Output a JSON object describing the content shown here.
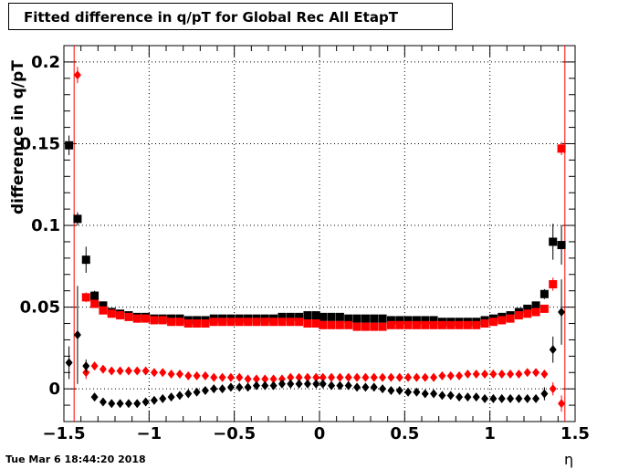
{
  "title": "Fitted difference in q/pT for Global Rec All EtapT",
  "timestamp": "Tue Mar  6 18:44:20 2018",
  "chart_data": {
    "type": "scatter",
    "title": "Fitted difference in q/pT for Global Rec All EtapT",
    "xlabel": "η",
    "ylabel": "difference in q/pT",
    "xlim": [
      -1.5,
      1.5
    ],
    "ylim": [
      -0.02,
      0.21
    ],
    "grid": true,
    "x_ticks": [
      "-1.5",
      "-1",
      "-0.5",
      "0",
      "0.5",
      "1",
      "1.5"
    ],
    "y_ticks": [
      "0",
      "0.05",
      "0.1",
      "0.15",
      "0.2"
    ],
    "vertical_lines": [
      -1.44,
      1.44
    ],
    "x": [
      -1.47,
      -1.42,
      -1.37,
      -1.32,
      -1.27,
      -1.22,
      -1.17,
      -1.12,
      -1.07,
      -1.02,
      -0.97,
      -0.92,
      -0.87,
      -0.82,
      -0.77,
      -0.72,
      -0.67,
      -0.62,
      -0.57,
      -0.52,
      -0.47,
      -0.42,
      -0.37,
      -0.32,
      -0.27,
      -0.22,
      -0.17,
      -0.12,
      -0.07,
      -0.02,
      0.02,
      0.07,
      0.12,
      0.17,
      0.22,
      0.27,
      0.32,
      0.37,
      0.42,
      0.47,
      0.52,
      0.57,
      0.62,
      0.67,
      0.72,
      0.77,
      0.82,
      0.87,
      0.92,
      0.97,
      1.02,
      1.07,
      1.12,
      1.17,
      1.22,
      1.27,
      1.32,
      1.37,
      1.42
    ],
    "series": [
      {
        "marker": "square",
        "color": "#000000",
        "values": [
          0.149,
          0.104,
          0.079,
          0.057,
          0.051,
          0.047,
          0.046,
          0.045,
          0.044,
          0.044,
          0.043,
          0.043,
          0.043,
          0.043,
          0.042,
          0.042,
          0.042,
          0.043,
          0.043,
          0.043,
          0.043,
          0.043,
          0.043,
          0.043,
          0.043,
          0.044,
          0.044,
          0.044,
          0.045,
          0.045,
          0.044,
          0.044,
          0.044,
          0.043,
          0.043,
          0.043,
          0.043,
          0.043,
          0.042,
          0.042,
          0.042,
          0.042,
          0.042,
          0.042,
          0.041,
          0.041,
          0.041,
          0.041,
          0.041,
          0.042,
          0.043,
          0.044,
          0.045,
          0.047,
          0.049,
          0.051,
          0.058,
          0.09,
          0.088
        ],
        "errors": [
          0.006,
          0.004,
          0.008,
          0.003,
          0.002,
          0.001,
          0.001,
          0.001,
          0.001,
          0.001,
          0.001,
          0.001,
          0.001,
          0.001,
          0.001,
          0.001,
          0.001,
          0.001,
          0.001,
          0.001,
          0.001,
          0.001,
          0.001,
          0.001,
          0.001,
          0.001,
          0.001,
          0.001,
          0.001,
          0.001,
          0.001,
          0.001,
          0.001,
          0.001,
          0.001,
          0.001,
          0.001,
          0.001,
          0.001,
          0.001,
          0.001,
          0.001,
          0.001,
          0.001,
          0.001,
          0.001,
          0.001,
          0.001,
          0.001,
          0.001,
          0.001,
          0.001,
          0.001,
          0.001,
          0.001,
          0.002,
          0.003,
          0.011,
          0.012
        ]
      },
      {
        "marker": "square",
        "color": "#ff0000",
        "values": [
          null,
          null,
          0.056,
          0.052,
          0.048,
          0.046,
          0.045,
          0.044,
          0.043,
          0.043,
          0.042,
          0.042,
          0.041,
          0.041,
          0.04,
          0.04,
          0.04,
          0.041,
          0.041,
          0.041,
          0.041,
          0.041,
          0.041,
          0.041,
          0.041,
          0.041,
          0.041,
          0.041,
          0.04,
          0.04,
          0.039,
          0.039,
          0.039,
          0.039,
          0.038,
          0.038,
          0.038,
          0.038,
          0.039,
          0.039,
          0.039,
          0.039,
          0.039,
          0.039,
          0.039,
          0.039,
          0.039,
          0.039,
          0.039,
          0.04,
          0.041,
          0.042,
          0.043,
          0.045,
          0.046,
          0.047,
          0.049,
          0.064,
          0.147
        ],
        "errors": [
          null,
          null,
          0.003,
          0.002,
          0.001,
          0.001,
          0.001,
          0.001,
          0.001,
          0.001,
          0.001,
          0.001,
          0.001,
          0.001,
          0.001,
          0.001,
          0.001,
          0.001,
          0.001,
          0.001,
          0.001,
          0.001,
          0.001,
          0.001,
          0.001,
          0.001,
          0.001,
          0.001,
          0.001,
          0.001,
          0.001,
          0.001,
          0.001,
          0.001,
          0.001,
          0.001,
          0.001,
          0.001,
          0.001,
          0.001,
          0.001,
          0.001,
          0.001,
          0.001,
          0.001,
          0.001,
          0.001,
          0.001,
          0.001,
          0.001,
          0.001,
          0.001,
          0.001,
          0.001,
          0.001,
          0.001,
          0.002,
          0.004,
          0.004
        ]
      },
      {
        "marker": "diamond",
        "color": "#ff0000",
        "values": [
          null,
          0.192,
          0.01,
          0.014,
          0.012,
          0.011,
          0.011,
          0.011,
          0.011,
          0.011,
          0.01,
          0.01,
          0.009,
          0.009,
          0.008,
          0.008,
          0.008,
          0.007,
          0.007,
          0.007,
          0.007,
          0.006,
          0.006,
          0.006,
          0.006,
          0.006,
          0.007,
          0.007,
          0.007,
          0.007,
          0.007,
          0.007,
          0.007,
          0.007,
          0.007,
          0.007,
          0.007,
          0.007,
          0.007,
          0.007,
          0.007,
          0.007,
          0.007,
          0.007,
          0.008,
          0.008,
          0.008,
          0.009,
          0.009,
          0.009,
          0.009,
          0.009,
          0.009,
          0.009,
          0.01,
          0.01,
          0.009,
          0.0,
          -0.009
        ],
        "errors": [
          null,
          0.005,
          0.004,
          0.002,
          0.001,
          0.001,
          0.001,
          0.001,
          0.001,
          0.001,
          0.001,
          0.001,
          0.001,
          0.001,
          0.001,
          0.001,
          0.001,
          0.001,
          0.001,
          0.001,
          0.001,
          0.001,
          0.001,
          0.001,
          0.001,
          0.001,
          0.001,
          0.001,
          0.001,
          0.001,
          0.001,
          0.001,
          0.001,
          0.001,
          0.001,
          0.001,
          0.001,
          0.001,
          0.001,
          0.001,
          0.001,
          0.001,
          0.001,
          0.001,
          0.001,
          0.001,
          0.001,
          0.001,
          0.001,
          0.001,
          0.001,
          0.001,
          0.001,
          0.001,
          0.001,
          0.001,
          0.002,
          0.004,
          0.005
        ]
      },
      {
        "marker": "diamond",
        "color": "#000000",
        "values": [
          0.016,
          0.033,
          0.014,
          -0.005,
          -0.008,
          -0.009,
          -0.009,
          -0.009,
          -0.009,
          -0.008,
          -0.007,
          -0.006,
          -0.005,
          -0.004,
          -0.003,
          -0.002,
          -0.001,
          0.0,
          0.0,
          0.001,
          0.001,
          0.001,
          0.002,
          0.002,
          0.002,
          0.003,
          0.003,
          0.003,
          0.003,
          0.003,
          0.003,
          0.002,
          0.002,
          0.002,
          0.001,
          0.001,
          0.001,
          0.0,
          -0.001,
          -0.001,
          -0.002,
          -0.002,
          -0.003,
          -0.003,
          -0.004,
          -0.004,
          -0.005,
          -0.005,
          -0.005,
          -0.006,
          -0.006,
          -0.006,
          -0.006,
          -0.006,
          -0.006,
          -0.006,
          -0.003,
          0.024,
          0.047
        ],
        "errors": [
          0.01,
          0.03,
          0.004,
          0.002,
          0.001,
          0.001,
          0.001,
          0.001,
          0.001,
          0.001,
          0.001,
          0.001,
          0.001,
          0.001,
          0.001,
          0.001,
          0.001,
          0.001,
          0.001,
          0.001,
          0.001,
          0.001,
          0.001,
          0.001,
          0.001,
          0.001,
          0.001,
          0.001,
          0.001,
          0.001,
          0.001,
          0.001,
          0.001,
          0.001,
          0.001,
          0.001,
          0.001,
          0.001,
          0.001,
          0.001,
          0.001,
          0.001,
          0.001,
          0.001,
          0.001,
          0.001,
          0.001,
          0.001,
          0.001,
          0.001,
          0.001,
          0.001,
          0.001,
          0.001,
          0.001,
          0.002,
          0.004,
          0.008,
          0.02
        ]
      }
    ]
  }
}
